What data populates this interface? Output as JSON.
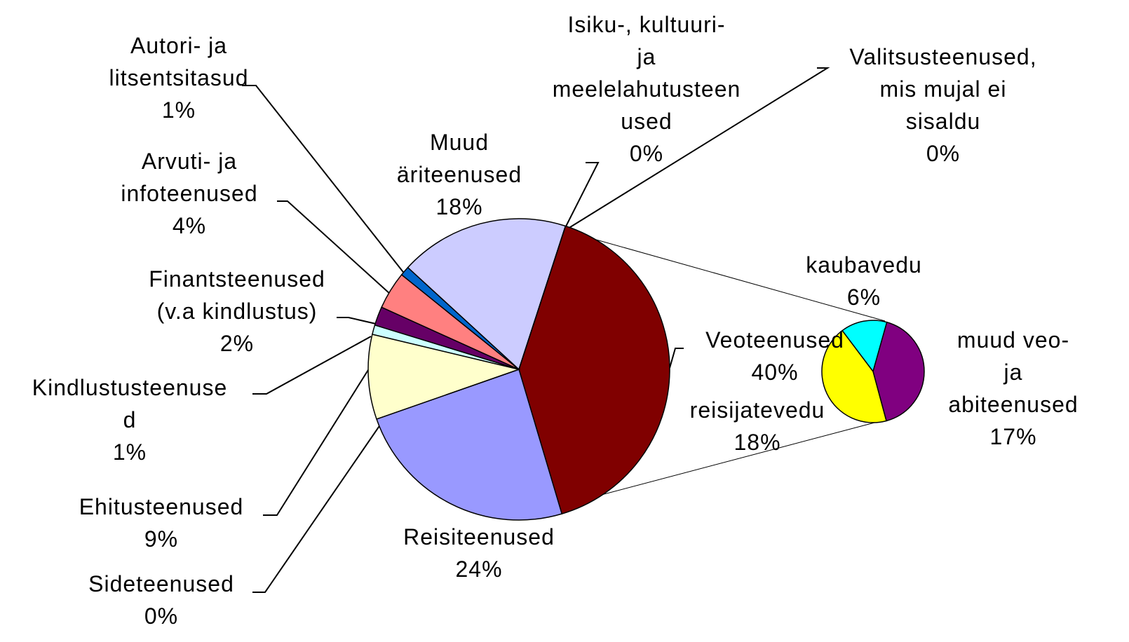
{
  "chart_data": {
    "type": "pie",
    "categories": [
      "Veoteenused",
      "Reisiteenused",
      "Sideteenused",
      "Ehitusteenused",
      "Kindlustusteenuse\nd",
      "Finantsteenused\n(v.a kindlustus)",
      "Arvuti- ja\ninfoteenused",
      "Autori- ja\nlitsentsitasud",
      "Muud\näriteenused",
      "Isiku-, kultuuri-\nja\nmeelelahutusteen\nused",
      "Valitsusteenused,\nmis mujal ei\nsisaldu"
    ],
    "values": [
      40,
      24,
      0,
      9,
      1,
      2,
      4,
      1,
      18,
      0,
      0
    ],
    "value_labels": [
      "40%",
      "24%",
      "0%",
      "9%",
      "1%",
      "2%",
      "4%",
      "1%",
      "18%",
      "0%",
      "0%"
    ],
    "colors": [
      "#800000",
      "#9999ff",
      "#cc3366",
      "#ffffcc",
      "#ccffff",
      "#660066",
      "#ff8080",
      "#0066cc",
      "#ccccff",
      "#000000",
      "#333333"
    ],
    "secondary": {
      "categories": [
        "kaubavedu",
        "muud veo- ja\nabiteenused",
        "reisijatevedu"
      ],
      "values": [
        6,
        17,
        18
      ],
      "value_labels": [
        "6%",
        "17%",
        "18%"
      ],
      "colors": [
        "#00ffff",
        "#800080",
        "#ffff00"
      ]
    }
  }
}
